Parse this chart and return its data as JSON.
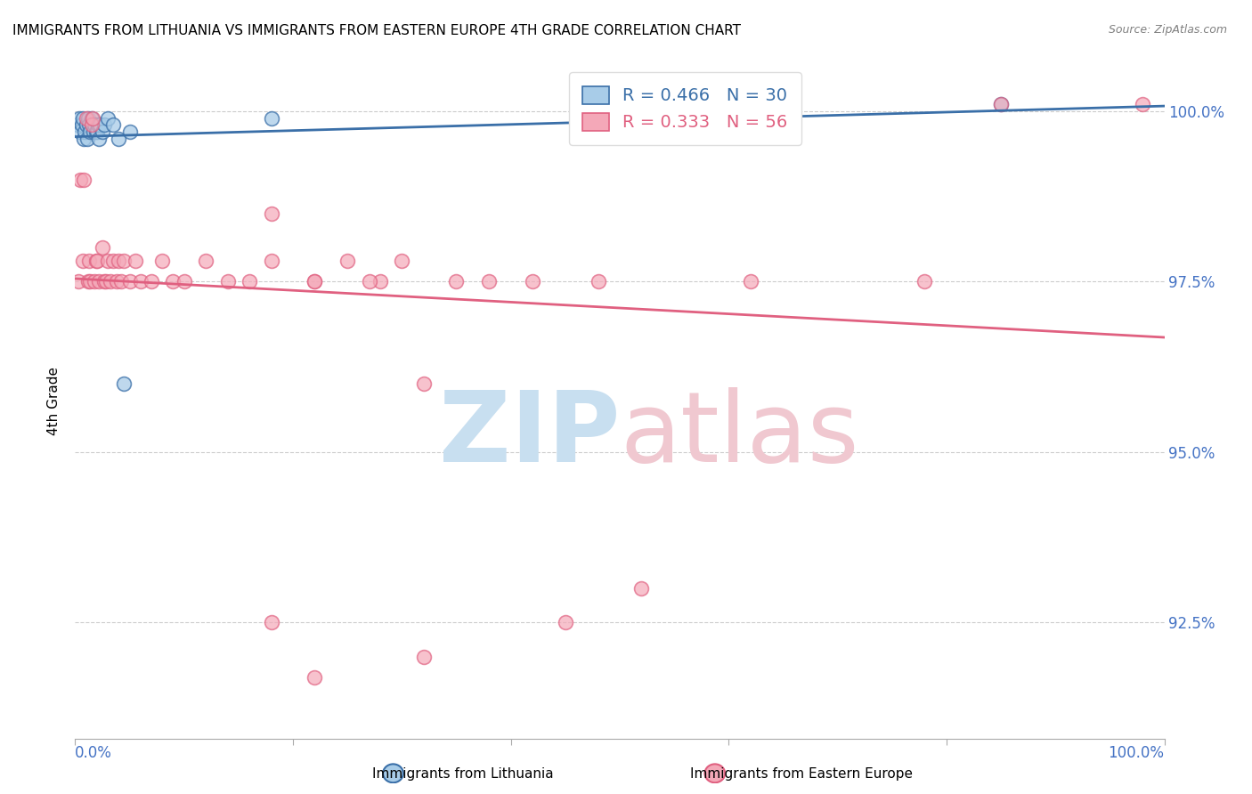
{
  "title": "IMMIGRANTS FROM LITHUANIA VS IMMIGRANTS FROM EASTERN EUROPE 4TH GRADE CORRELATION CHART",
  "source": "Source: ZipAtlas.com",
  "ylabel": "4th Grade",
  "ytick_labels": [
    "100.0%",
    "97.5%",
    "95.0%",
    "92.5%"
  ],
  "ytick_values": [
    1.0,
    0.975,
    0.95,
    0.925
  ],
  "xlim": [
    0.0,
    1.0
  ],
  "ylim": [
    0.908,
    1.007
  ],
  "legend_blue_r": "0.466",
  "legend_blue_n": "30",
  "legend_pink_r": "0.333",
  "legend_pink_n": "56",
  "legend_label_blue": "Immigrants from Lithuania",
  "legend_label_pink": "Immigrants from Eastern Europe",
  "blue_color": "#a8cce8",
  "pink_color": "#f4a8b8",
  "trendline_blue_color": "#3a6fa8",
  "trendline_pink_color": "#e06080",
  "watermark_color_zip": "#c8dff0",
  "watermark_color_atlas": "#f0c8d0",
  "blue_x": [
    0.002,
    0.004,
    0.005,
    0.006,
    0.007,
    0.008,
    0.009,
    0.01,
    0.011,
    0.012,
    0.013,
    0.014,
    0.015,
    0.016,
    0.017,
    0.018,
    0.019,
    0.02,
    0.021,
    0.022,
    0.023,
    0.025,
    0.027,
    0.03,
    0.035,
    0.04,
    0.045,
    0.05,
    0.18,
    0.85
  ],
  "blue_y": [
    0.998,
    0.999,
    0.997,
    0.998,
    0.999,
    0.996,
    0.997,
    0.998,
    0.996,
    0.999,
    0.998,
    0.997,
    0.999,
    0.998,
    0.997,
    0.998,
    0.997,
    0.997,
    0.998,
    0.996,
    0.998,
    0.997,
    0.998,
    0.999,
    0.998,
    0.996,
    0.96,
    0.997,
    0.999,
    1.001
  ],
  "pink_x": [
    0.003,
    0.005,
    0.007,
    0.008,
    0.01,
    0.012,
    0.013,
    0.014,
    0.015,
    0.016,
    0.018,
    0.019,
    0.02,
    0.022,
    0.025,
    0.027,
    0.028,
    0.03,
    0.032,
    0.035,
    0.038,
    0.04,
    0.042,
    0.045,
    0.05,
    0.055,
    0.06,
    0.07,
    0.08,
    0.09,
    0.1,
    0.12,
    0.14,
    0.16,
    0.18,
    0.22,
    0.25,
    0.28,
    0.32,
    0.35,
    0.38,
    0.42,
    0.3,
    0.18,
    0.22,
    0.27,
    0.48,
    0.52,
    0.78,
    0.85,
    0.18,
    0.22,
    0.32,
    0.45,
    0.62,
    0.98
  ],
  "pink_y": [
    0.975,
    0.99,
    0.978,
    0.99,
    0.999,
    0.975,
    0.978,
    0.975,
    0.998,
    0.999,
    0.975,
    0.978,
    0.978,
    0.975,
    0.98,
    0.975,
    0.975,
    0.978,
    0.975,
    0.978,
    0.975,
    0.978,
    0.975,
    0.978,
    0.975,
    0.978,
    0.975,
    0.975,
    0.978,
    0.975,
    0.975,
    0.978,
    0.975,
    0.975,
    0.978,
    0.975,
    0.978,
    0.975,
    0.96,
    0.975,
    0.975,
    0.975,
    0.978,
    0.985,
    0.975,
    0.975,
    0.975,
    0.93,
    0.975,
    1.001,
    0.925,
    0.917,
    0.92,
    0.925,
    0.975,
    1.001
  ]
}
